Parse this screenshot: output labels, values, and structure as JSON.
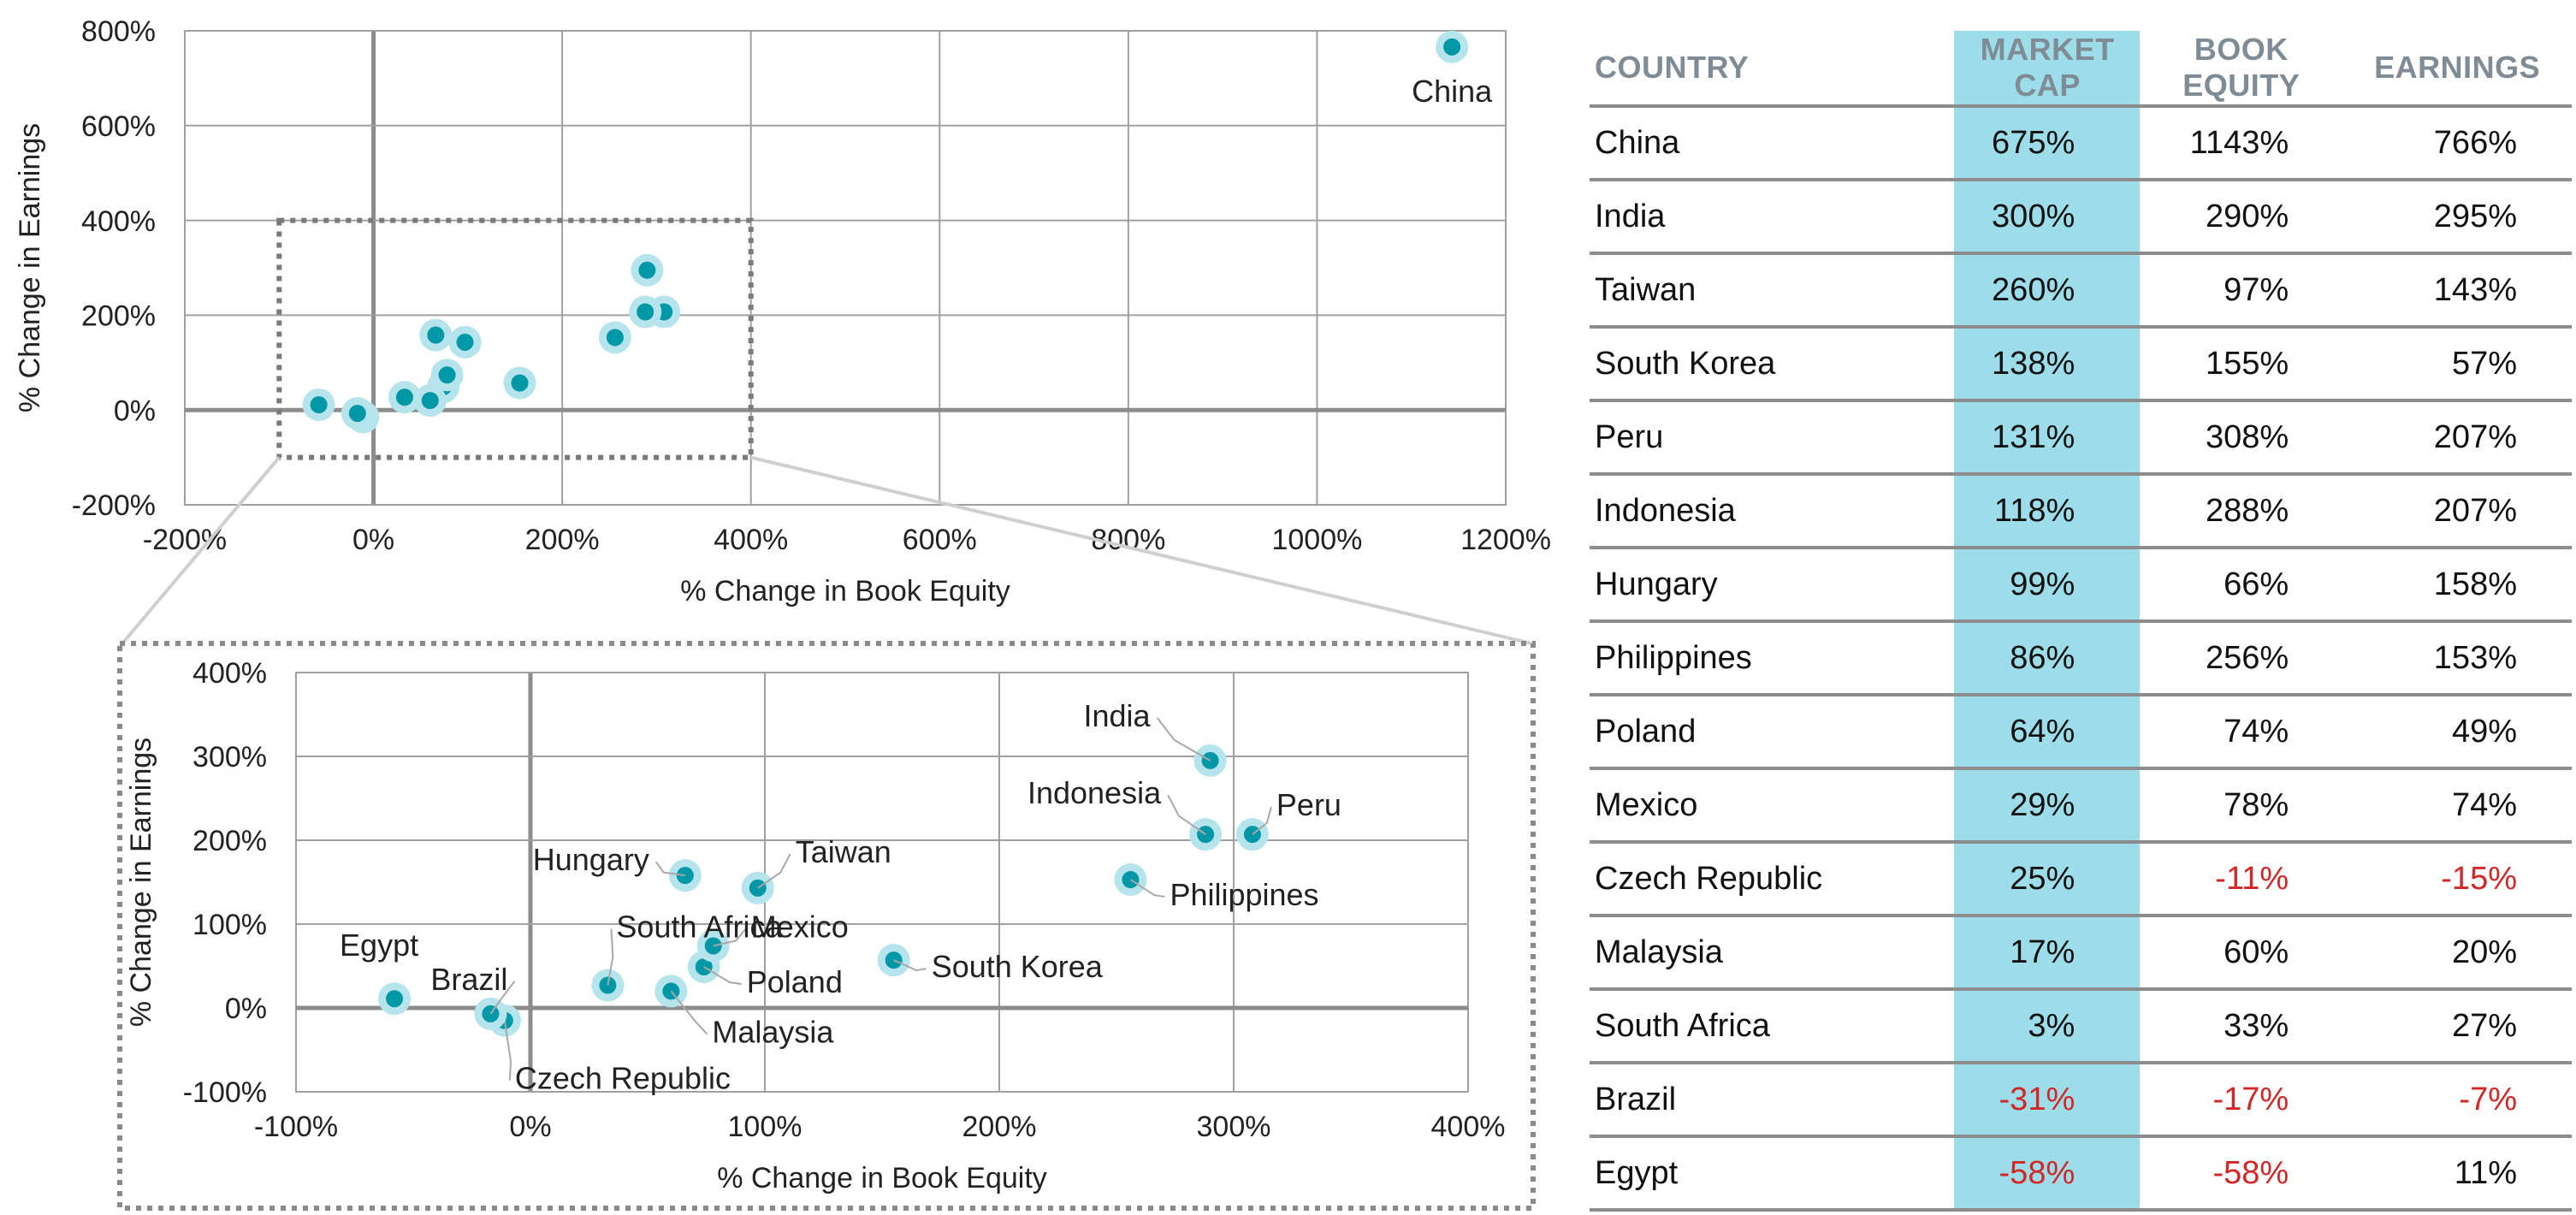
{
  "chart_data": [
    {
      "type": "scatter",
      "xlabel": "% Change in Book Equity",
      "ylabel": "% Change in Earnings",
      "xlim": [
        -200,
        1200
      ],
      "ylim": [
        -200,
        800
      ],
      "x_ticks": [
        "-200%",
        "0%",
        "200%",
        "400%",
        "600%",
        "800%",
        "1000%",
        "1200%"
      ],
      "y_ticks": [
        "800%",
        "600%",
        "400%",
        "200%",
        "0%",
        "-200%"
      ],
      "grid": true,
      "marker_color": "#0097a7",
      "points": [
        {
          "label": "China",
          "x": 1143,
          "y": 766
        },
        {
          "label": "",
          "x": 290,
          "y": 295
        },
        {
          "label": "",
          "x": 97,
          "y": 143
        },
        {
          "label": "",
          "x": 155,
          "y": 57
        },
        {
          "label": "",
          "x": 308,
          "y": 207
        },
        {
          "label": "",
          "x": 288,
          "y": 207
        },
        {
          "label": "",
          "x": 66,
          "y": 158
        },
        {
          "label": "",
          "x": 256,
          "y": 153
        },
        {
          "label": "",
          "x": 74,
          "y": 49
        },
        {
          "label": "",
          "x": 78,
          "y": 74
        },
        {
          "label": "",
          "x": -11,
          "y": -15
        },
        {
          "label": "",
          "x": 60,
          "y": 20
        },
        {
          "label": "",
          "x": 33,
          "y": 27
        },
        {
          "label": "",
          "x": -17,
          "y": -7
        },
        {
          "label": "",
          "x": -58,
          "y": 11
        }
      ],
      "zoom_box": {
        "x": [
          -100,
          400
        ],
        "y": [
          -100,
          400
        ]
      }
    },
    {
      "type": "scatter",
      "xlabel": "% Change in Book Equity",
      "ylabel": "% Change in Earnings",
      "xlim": [
        -100,
        400
      ],
      "ylim": [
        -100,
        400
      ],
      "x_ticks": [
        "-100%",
        "0%",
        "100%",
        "200%",
        "300%",
        "400%"
      ],
      "y_ticks": [
        "400%",
        "300%",
        "200%",
        "100%",
        "0%",
        "-100%"
      ],
      "grid": true,
      "marker_color": "#0097a7",
      "points": [
        {
          "label": "India",
          "x": 290,
          "y": 295
        },
        {
          "label": "Taiwan",
          "x": 97,
          "y": 143
        },
        {
          "label": "South Korea",
          "x": 155,
          "y": 57
        },
        {
          "label": "Peru",
          "x": 308,
          "y": 207
        },
        {
          "label": "Indonesia",
          "x": 288,
          "y": 207
        },
        {
          "label": "Hungary",
          "x": 66,
          "y": 158
        },
        {
          "label": "Philippines",
          "x": 256,
          "y": 153
        },
        {
          "label": "Poland",
          "x": 74,
          "y": 49
        },
        {
          "label": "Mexico",
          "x": 78,
          "y": 74
        },
        {
          "label": "Czech Republic",
          "x": -11,
          "y": -15
        },
        {
          "label": "Malaysia",
          "x": 60,
          "y": 20
        },
        {
          "label": "South Africa",
          "x": 33,
          "y": 27
        },
        {
          "label": "Brazil",
          "x": -17,
          "y": -7
        },
        {
          "label": "Egypt",
          "x": -58,
          "y": 11
        }
      ]
    },
    {
      "type": "table",
      "columns": [
        "COUNTRY",
        "MARKET CAP",
        "BOOK EQUITY",
        "EARNINGS"
      ],
      "rows": [
        [
          "China",
          "675%",
          "1143%",
          "766%"
        ],
        [
          "India",
          "300%",
          "290%",
          "295%"
        ],
        [
          "Taiwan",
          "260%",
          "97%",
          "143%"
        ],
        [
          "South Korea",
          "138%",
          "155%",
          "57%"
        ],
        [
          "Peru",
          "131%",
          "308%",
          "207%"
        ],
        [
          "Indonesia",
          "118%",
          "288%",
          "207%"
        ],
        [
          "Hungary",
          "99%",
          "66%",
          "158%"
        ],
        [
          "Philippines",
          "86%",
          "256%",
          "153%"
        ],
        [
          "Poland",
          "64%",
          "74%",
          "49%"
        ],
        [
          "Mexico",
          "29%",
          "78%",
          "74%"
        ],
        [
          "Czech Republic",
          "25%",
          "-11%",
          "-15%"
        ],
        [
          "Malaysia",
          "17%",
          "60%",
          "20%"
        ],
        [
          "South Africa",
          "3%",
          "33%",
          "27%"
        ],
        [
          "Brazil",
          "-31%",
          "-17%",
          "-7%"
        ],
        [
          "Egypt",
          "-58%",
          "-58%",
          "11%"
        ]
      ],
      "highlight_column": "MARKET CAP",
      "highlight_color": "#9ddde9",
      "negative_color": "#d32626"
    }
  ]
}
